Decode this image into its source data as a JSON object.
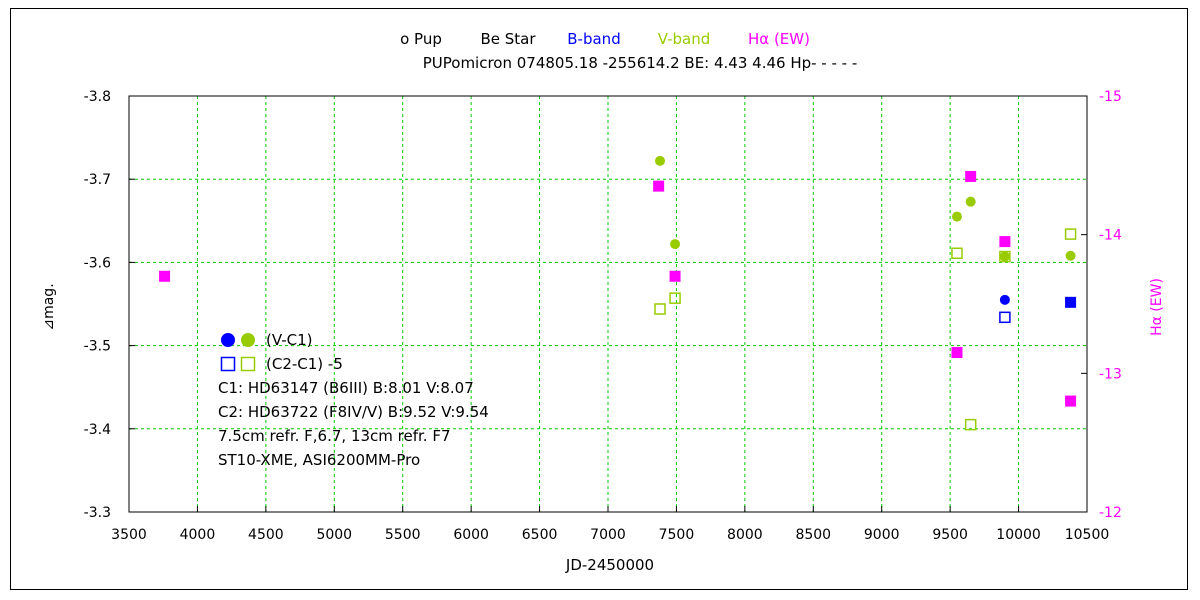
{
  "chart_data": {
    "type": "scatter",
    "title": "ο Pup   Be Star   B-band   V-band   Hα (EW)",
    "title_parts": [
      {
        "text": "ο  Pup",
        "color": "#000000"
      },
      {
        "text": "Be Star",
        "color": "#000000"
      },
      {
        "text": "B-band",
        "color": "#0000ff"
      },
      {
        "text": "V-band",
        "color": "#99cc00"
      },
      {
        "text": "Hα (EW)",
        "color": "#ff00ff"
      }
    ],
    "subtitle": "PUPomicron 074805.18 -255614.2 BE: 4.43 4.46 Hp- - - - -",
    "xlabel": "JD-2450000",
    "ylabel": "⊿mag.",
    "y2label": "Hα (EW)",
    "xlim": [
      3500,
      10500
    ],
    "xticks": [
      3500,
      4000,
      4500,
      5000,
      5500,
      6000,
      6500,
      7000,
      7500,
      8000,
      8500,
      9000,
      9500,
      10000,
      10500
    ],
    "ylim": [
      -3.3,
      -3.8
    ],
    "yticks": [
      -3.8,
      -3.7,
      -3.6,
      -3.5,
      -3.4,
      -3.3
    ],
    "y2lim": [
      -12,
      -15
    ],
    "y2ticks": [
      -15,
      -14,
      -13,
      -12
    ],
    "grid": true,
    "colors": {
      "B": "#0000ff",
      "V": "#99cc00",
      "Ha": "#ff00ff",
      "grid": "#00cc00"
    },
    "series": [
      {
        "name": "(V-C1)",
        "band": "B",
        "marker": "filled-circle",
        "axis": "left",
        "points": [
          [
            9900,
            -3.555
          ]
        ]
      },
      {
        "name": "(V-C1)",
        "band": "V",
        "marker": "filled-circle",
        "axis": "left",
        "points": [
          [
            7380,
            -3.722
          ],
          [
            7490,
            -3.622
          ],
          [
            9550,
            -3.655
          ],
          [
            9650,
            -3.673
          ],
          [
            9900,
            -3.607
          ],
          [
            10380,
            -3.608
          ]
        ]
      },
      {
        "name": "(C2-C1) -5",
        "band": "B",
        "marker": "open-square",
        "axis": "left",
        "points": [
          [
            9900,
            -3.534
          ]
        ]
      },
      {
        "name": "(C2-C1) -5",
        "band": "V",
        "marker": "open-square",
        "axis": "left",
        "points": [
          [
            7380,
            -3.544
          ],
          [
            7490,
            -3.557
          ],
          [
            9550,
            -3.611
          ],
          [
            9650,
            -3.405
          ],
          [
            9900,
            -3.607
          ],
          [
            10380,
            -3.634
          ]
        ]
      },
      {
        "name": "B-band",
        "band": "B",
        "marker": "filled-square",
        "axis": "left",
        "points": [
          [
            10380,
            -3.552
          ]
        ]
      },
      {
        "name": "Hα (EW)",
        "band": "Ha",
        "marker": "filled-square",
        "axis": "right",
        "points": [
          [
            3760,
            -13.7
          ],
          [
            7370,
            -14.35
          ],
          [
            7490,
            -13.7
          ],
          [
            9550,
            -13.15
          ],
          [
            9650,
            -14.42
          ],
          [
            9900,
            -13.95
          ],
          [
            10380,
            -12.8
          ]
        ]
      }
    ],
    "legend": {
      "placement": "lower-left",
      "rows": [
        {
          "markers": [
            "filled-circle-B",
            "filled-circle-V"
          ],
          "label": "(V-C1)"
        },
        {
          "markers": [
            "open-square-B",
            "open-square-V"
          ],
          "label": "(C2-C1) -5"
        }
      ]
    },
    "annotations": [
      "C1: HD63147 (B6III) B:8.01  V:8.07",
      "C2: HD63722 (F8IV/V)  B:9.52  V:9.54",
      "7.5cm refr. F,6.7,  13cm refr. F7",
      "ST10-XME,  ASI6200MM-Pro"
    ]
  }
}
